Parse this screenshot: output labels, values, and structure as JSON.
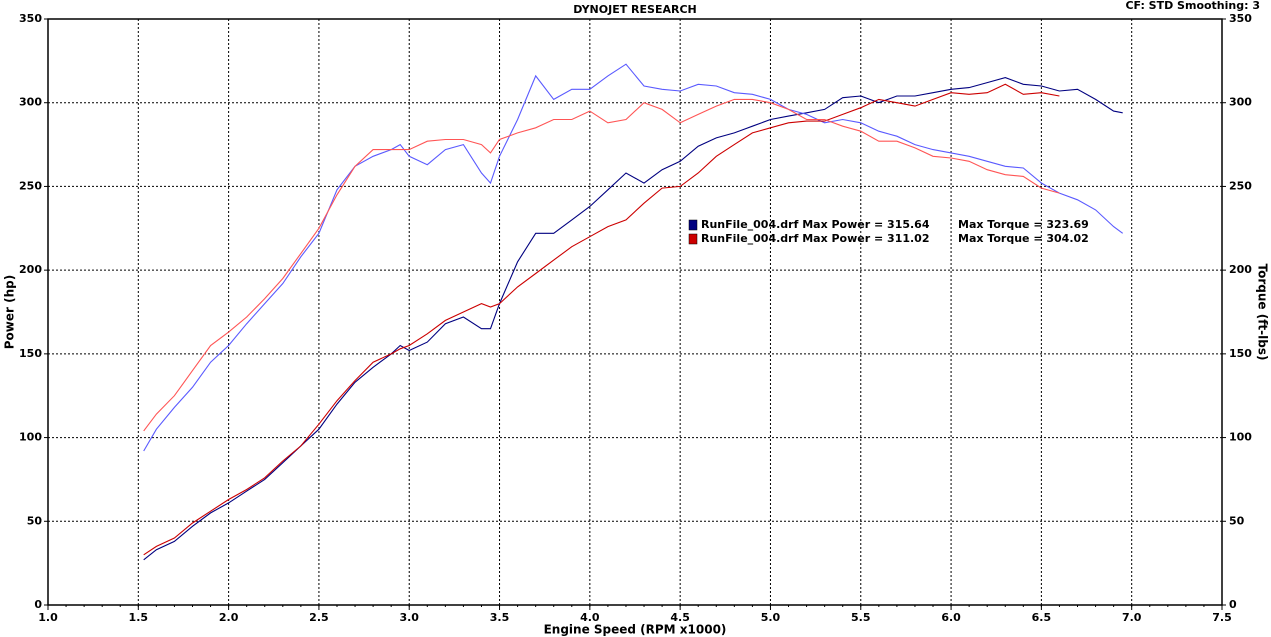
{
  "chart_data": {
    "type": "line",
    "title": "DYNOJET RESEARCH",
    "subtitle": "CF: STD  Smoothing: 3",
    "xlabel": "Engine Speed (RPM x1000)",
    "ylabel": "Power (hp)",
    "y2label": "Torque (ft-lbs)",
    "x": [
      1.53,
      1.6,
      1.7,
      1.8,
      1.9,
      2.0,
      2.1,
      2.2,
      2.3,
      2.4,
      2.5,
      2.6,
      2.7,
      2.8,
      2.9,
      2.95,
      3.0,
      3.1,
      3.2,
      3.3,
      3.4,
      3.45,
      3.5,
      3.6,
      3.7,
      3.8,
      3.9,
      4.0,
      4.1,
      4.2,
      4.3,
      4.4,
      4.5,
      4.6,
      4.7,
      4.8,
      4.9,
      5.0,
      5.1,
      5.2,
      5.3,
      5.4,
      5.5,
      5.6,
      5.7,
      5.8,
      5.9,
      6.0,
      6.1,
      6.2,
      6.3,
      6.4,
      6.5,
      6.6,
      6.7,
      6.8,
      6.9,
      6.95
    ],
    "xlim": [
      1,
      7.5
    ],
    "xticks": [
      {
        "value": 1,
        "label": "1.0"
      },
      {
        "value": 1.5,
        "label": "1.5"
      },
      {
        "value": 2,
        "label": "2.0"
      },
      {
        "value": 2.5,
        "label": "2.5"
      },
      {
        "value": 3,
        "label": "3.0"
      },
      {
        "value": 3.5,
        "label": "3.5"
      },
      {
        "value": 4,
        "label": "4.0"
      },
      {
        "value": 4.5,
        "label": "4.5"
      },
      {
        "value": 5,
        "label": "5.0"
      },
      {
        "value": 5.5,
        "label": "5.5"
      },
      {
        "value": 6,
        "label": "6.0"
      },
      {
        "value": 6.5,
        "label": "6.5"
      },
      {
        "value": 7,
        "label": "7.0"
      },
      {
        "value": 7.5,
        "label": "7.5"
      }
    ],
    "ylim": [
      0,
      350
    ],
    "yticks": [
      0,
      50,
      100,
      150,
      200,
      250,
      300,
      350
    ],
    "y2lim": [
      0,
      350
    ],
    "y2ticks": [
      0,
      50,
      100,
      150,
      200,
      250,
      300,
      350
    ],
    "grid": true,
    "series": [
      {
        "name": "RunFile_004.drf Max Power = 315.64",
        "color": "#000080",
        "axis": "y",
        "values": [
          27,
          33,
          38,
          47,
          55,
          61,
          68,
          75,
          85,
          95,
          105,
          120,
          133,
          142,
          150,
          155,
          152,
          157,
          168,
          172,
          165,
          165,
          180,
          205,
          222,
          222,
          230,
          238,
          248,
          258,
          252,
          260,
          265,
          274,
          279,
          282,
          286,
          290,
          292,
          294,
          296,
          303,
          304,
          300,
          304,
          304,
          306,
          308,
          309,
          312,
          315,
          311,
          310,
          307,
          308,
          302,
          295,
          294
        ]
      },
      {
        "name": "Max Torque = 323.69",
        "color": "#5a5aff",
        "axis": "y2",
        "values": [
          92,
          105,
          118,
          130,
          145,
          155,
          168,
          180,
          192,
          208,
          222,
          248,
          262,
          268,
          272,
          275,
          268,
          263,
          272,
          275,
          258,
          252,
          268,
          290,
          316,
          302,
          308,
          308,
          316,
          323,
          310,
          308,
          307,
          311,
          310,
          306,
          305,
          302,
          296,
          293,
          288,
          290,
          288,
          283,
          280,
          275,
          272,
          270,
          268,
          265,
          262,
          261,
          252,
          246,
          242,
          236,
          226,
          222
        ]
      },
      {
        "name": "RunFile_004.drf Max Power = 311.02",
        "color": "#cc0000",
        "axis": "y",
        "values": [
          30,
          35,
          40,
          49,
          56,
          63,
          69,
          76,
          86,
          95,
          108,
          122,
          134,
          145,
          150,
          153,
          155,
          162,
          170,
          175,
          180,
          178,
          180,
          190,
          198,
          206,
          214,
          220,
          226,
          230,
          240,
          249,
          250,
          258,
          268,
          275,
          282,
          285,
          288,
          289,
          289,
          293,
          297,
          302,
          300,
          298,
          302,
          306,
          305,
          306,
          311,
          305,
          306,
          304,
          null,
          null,
          null,
          null
        ]
      },
      {
        "name": "Max Torque = 304.02",
        "color": "#ff5555",
        "axis": "y2",
        "values": [
          104,
          114,
          125,
          140,
          155,
          163,
          172,
          183,
          195,
          210,
          225,
          245,
          262,
          272,
          272,
          272,
          272,
          277,
          278,
          278,
          275,
          270,
          278,
          282,
          285,
          290,
          290,
          295,
          288,
          290,
          300,
          296,
          288,
          293,
          298,
          302,
          302,
          300,
          296,
          290,
          290,
          286,
          283,
          277,
          277,
          273,
          268,
          267,
          265,
          260,
          257,
          256,
          249,
          246,
          null,
          null,
          null,
          null
        ]
      }
    ]
  }
}
